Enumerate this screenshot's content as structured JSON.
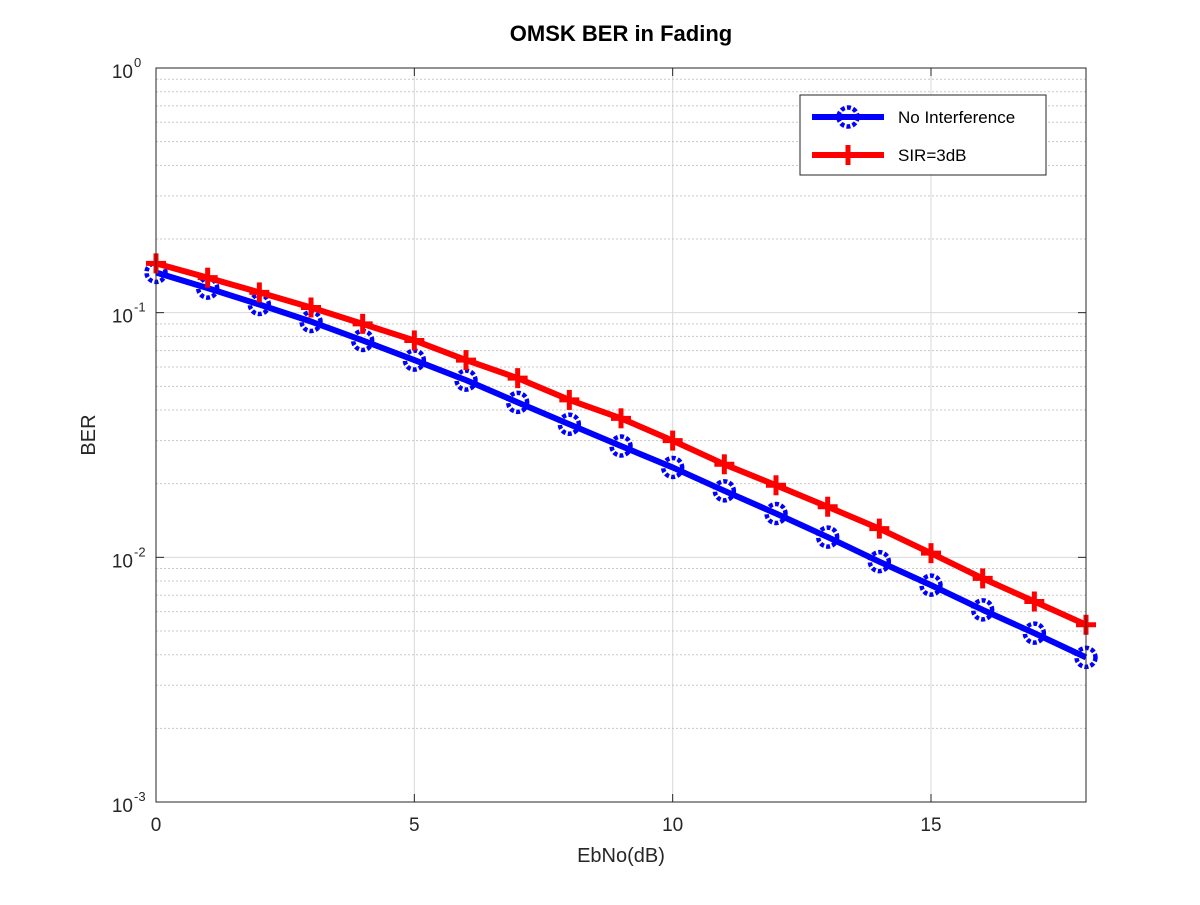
{
  "chart_data": {
    "type": "line",
    "title": "OMSK BER in Fading",
    "xlabel": "EbNo(dB)",
    "ylabel": "BER",
    "xlim": [
      0,
      18
    ],
    "ylim": [
      0.001,
      1
    ],
    "yscale": "log",
    "grid": true,
    "legend_position": "top-right",
    "x_ticks": [
      "0",
      "5",
      "10",
      "15"
    ],
    "y_ticks": [
      {
        "base": "10",
        "exp": "0"
      },
      {
        "base": "10",
        "exp": "-1"
      },
      {
        "base": "10",
        "exp": "-2"
      },
      {
        "base": "10",
        "exp": "-3"
      }
    ],
    "x": [
      0,
      1,
      2,
      3,
      4,
      5,
      6,
      7,
      8,
      9,
      10,
      11,
      12,
      13,
      14,
      15,
      16,
      17,
      18
    ],
    "series": [
      {
        "name": "No Interference",
        "color": "#0000ff",
        "marker": "circle",
        "values": [
          0.146,
          0.126,
          0.108,
          0.092,
          0.077,
          0.064,
          0.053,
          0.043,
          0.035,
          0.0285,
          0.0233,
          0.0187,
          0.0151,
          0.0121,
          0.0096,
          0.0077,
          0.0061,
          0.0049,
          0.0039
        ]
      },
      {
        "name": "SIR=3dB",
        "color": "#ff0000",
        "marker": "plus",
        "values": [
          0.159,
          0.139,
          0.121,
          0.105,
          0.09,
          0.077,
          0.064,
          0.054,
          0.044,
          0.037,
          0.03,
          0.024,
          0.0197,
          0.0161,
          0.0131,
          0.0104,
          0.0082,
          0.0066,
          0.0053
        ]
      }
    ]
  }
}
